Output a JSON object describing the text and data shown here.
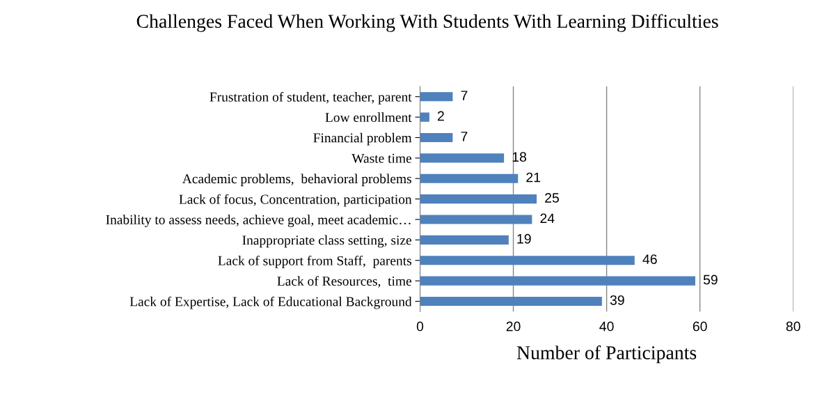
{
  "chart_data": {
    "type": "bar",
    "orientation": "horizontal",
    "title": "Challenges Faced When Working With Students With Learning Difficulties",
    "xlabel": "Number of Participants",
    "categories": [
      "Frustration of student, teacher, parent",
      "Low enrollment",
      "Financial problem",
      "Waste time",
      "Academic problems,  behavioral problems",
      "Lack of focus, Concentration, participation",
      "Inability to assess needs, achieve goal, meet academic…",
      "Inappropriate class setting, size",
      "Lack of support from Staff,  parents",
      "Lack of Resources,  time",
      "Lack of Expertise, Lack of Educational Background"
    ],
    "values": [
      7,
      2,
      7,
      18,
      21,
      25,
      24,
      19,
      46,
      59,
      39
    ],
    "color": "#4f81bd",
    "xlim": [
      0,
      80
    ],
    "xticks": [
      0,
      20,
      40,
      60,
      80
    ],
    "grid": "x",
    "data_labels": true,
    "legend": false
  }
}
